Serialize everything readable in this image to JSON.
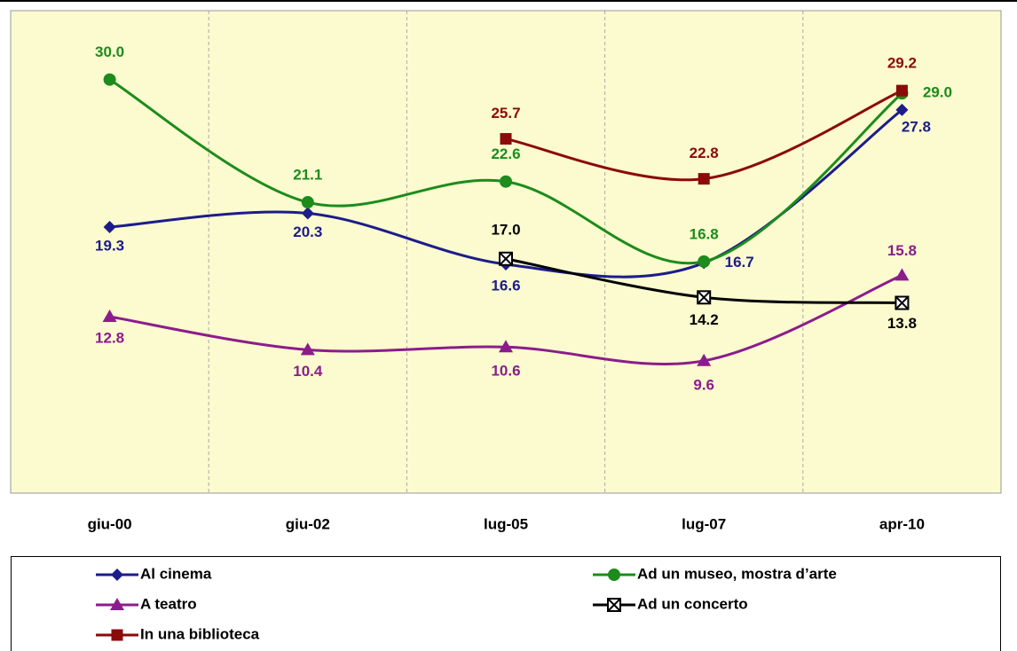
{
  "chart_data": {
    "type": "line",
    "categories": [
      "giu-00",
      "giu-02",
      "lug-05",
      "lug-07",
      "apr-10"
    ],
    "ylim": [
      0,
      35
    ],
    "grid": true,
    "series": [
      {
        "name": "Al cinema",
        "color": "#1c1c8c",
        "marker": "diamond",
        "values": [
          19.3,
          20.3,
          16.6,
          16.7,
          27.8
        ],
        "value_labels": [
          "19.3",
          "20.3",
          "16.6",
          "16.7",
          "27.8"
        ]
      },
      {
        "name": "Ad un museo, mostra d’arte",
        "color": "#1c8c1c",
        "marker": "circle",
        "values": [
          30.0,
          21.1,
          22.6,
          16.8,
          29.0
        ],
        "value_labels": [
          "30.0",
          "21.1",
          "22.6",
          "16.8",
          "29.0"
        ]
      },
      {
        "name": "A teatro",
        "color": "#8c1c8c",
        "marker": "triangle",
        "values": [
          12.8,
          10.4,
          10.6,
          9.6,
          15.8
        ],
        "value_labels": [
          "12.8",
          "10.4",
          "10.6",
          "9.6",
          "15.8"
        ]
      },
      {
        "name": "Ad un concerto",
        "color": "#000000",
        "marker": "xsquare",
        "values": [
          null,
          null,
          17.0,
          14.2,
          13.8
        ],
        "value_labels": [
          null,
          null,
          "17.0",
          "14.2",
          "13.8"
        ]
      },
      {
        "name": "In una biblioteca",
        "color": "#8b0a0a",
        "marker": "square",
        "values": [
          null,
          null,
          25.7,
          22.8,
          29.2
        ],
        "value_labels": [
          null,
          null,
          "25.7",
          "22.8",
          "29.2"
        ]
      }
    ]
  }
}
